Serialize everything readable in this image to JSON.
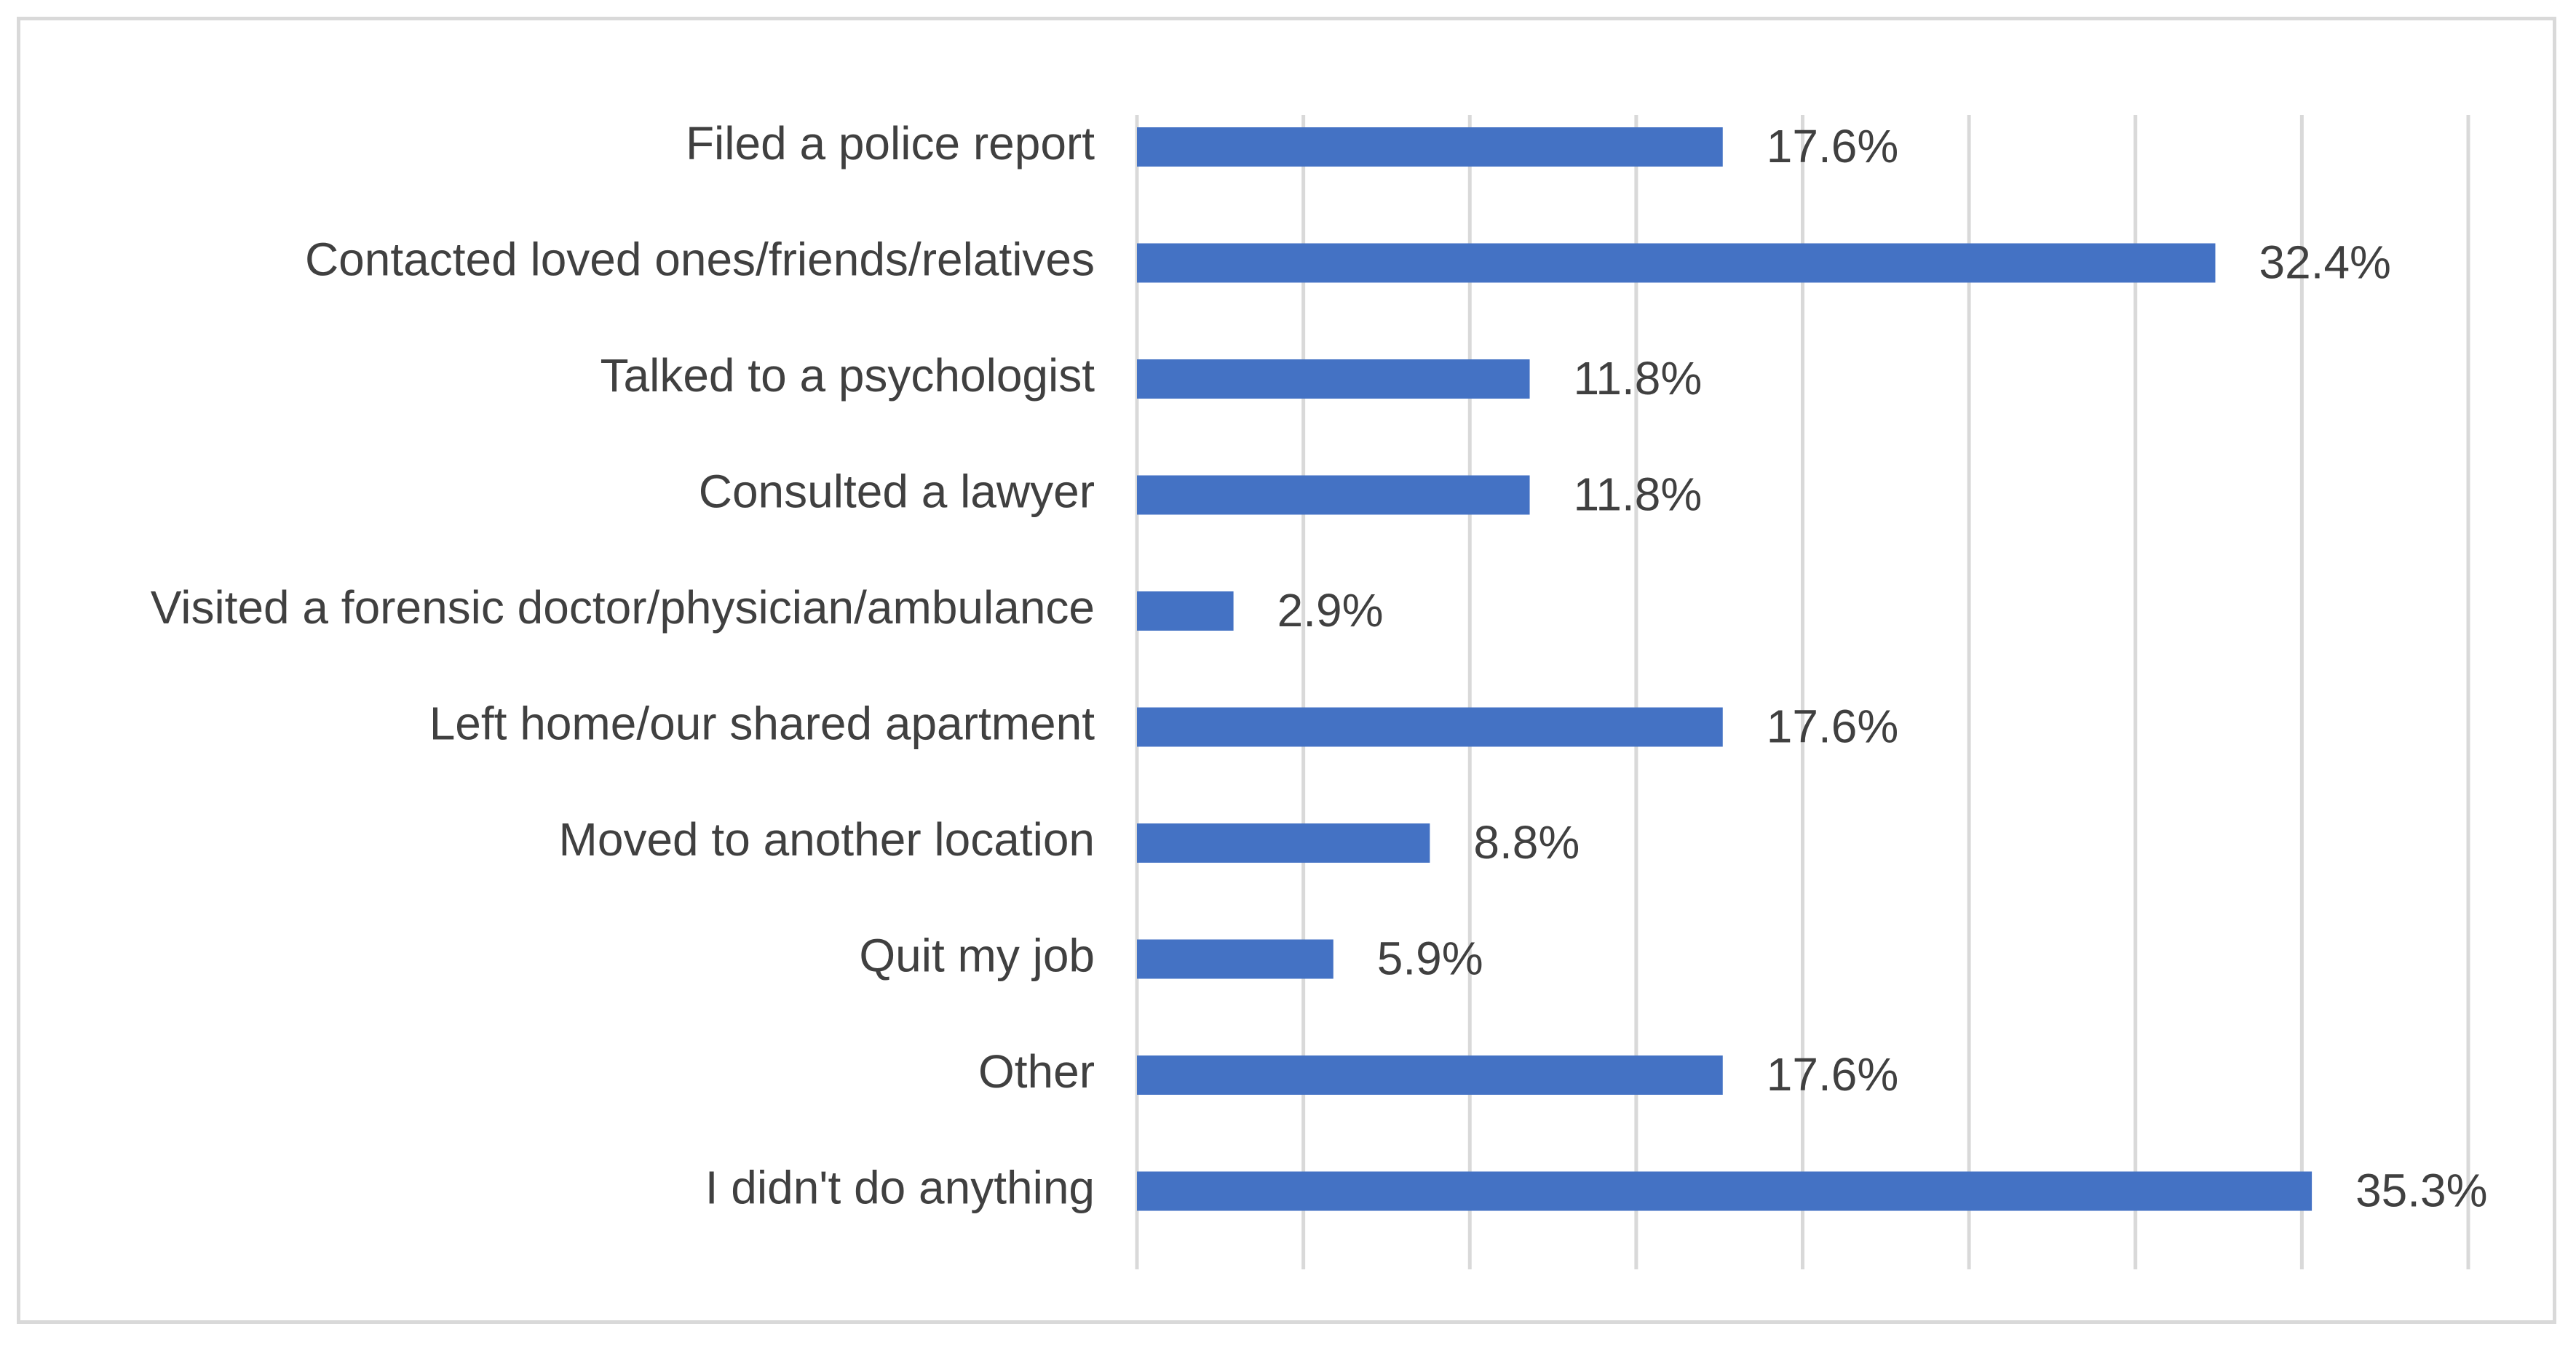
{
  "chart_data": {
    "type": "bar",
    "orientation": "horizontal",
    "categories": [
      "Filed a police report",
      "Contacted loved ones/friends/relatives",
      "Talked to a psychologist",
      "Consulted a lawyer",
      "Visited a forensic doctor/physician/ambulance",
      "Left home/our shared apartment",
      "Moved to another location",
      "Quit my job",
      "Other",
      "I didn't do anything"
    ],
    "values": [
      17.6,
      32.4,
      11.8,
      11.8,
      2.9,
      17.6,
      8.8,
      5.9,
      17.6,
      35.3
    ],
    "data_labels": [
      "17.6%",
      "32.4%",
      "11.8%",
      "11.8%",
      "2.9%",
      "17.6%",
      "8.8%",
      "5.9%",
      "17.6%",
      "35.3%"
    ],
    "value_unit": "%",
    "xlim": [
      0,
      40
    ],
    "x_gridline_step": 5,
    "grid": true,
    "legend": "none",
    "colors": {
      "bar": "#4472c4",
      "text": "#404040",
      "gridline": "#d9d9d9",
      "frame": "#d9d9d9"
    }
  }
}
